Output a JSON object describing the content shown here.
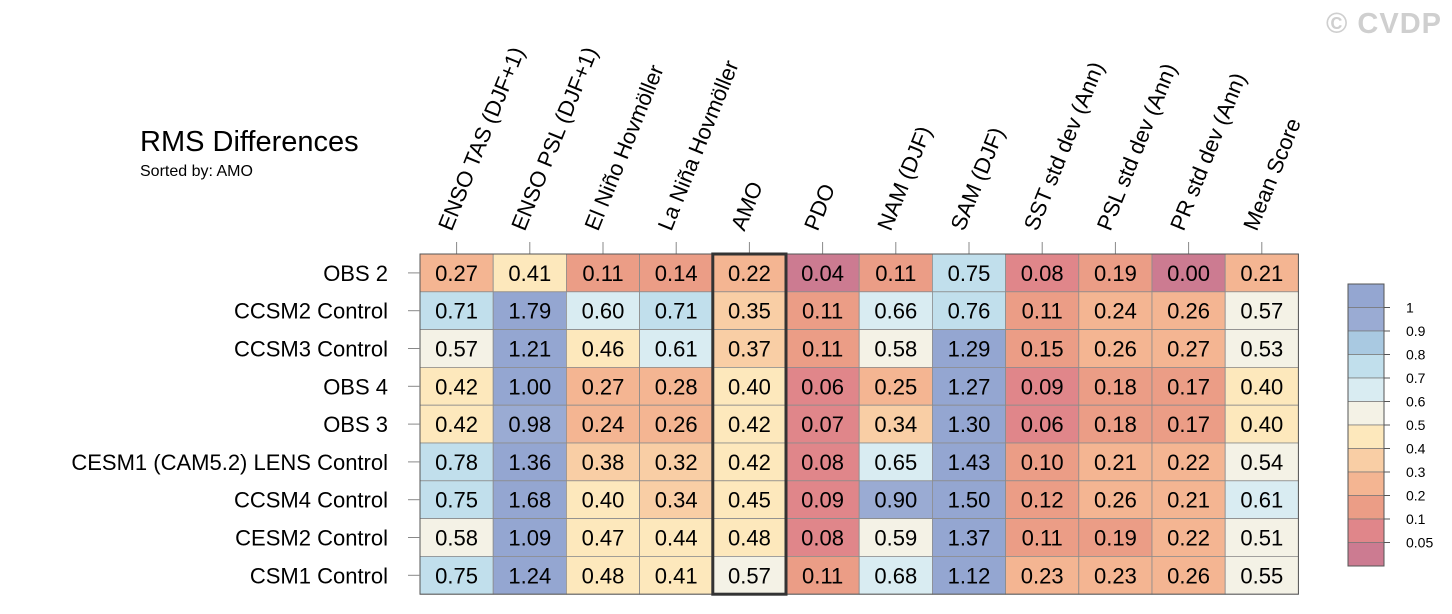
{
  "chart_data": {
    "type": "heatmap",
    "title": "RMS Differences",
    "subtitle": "Sorted by: AMO",
    "watermark": "© CVDP",
    "columns": [
      "ENSO TAS (DJF+1)",
      "ENSO PSL (DJF+1)",
      "El Niño Hovmöller",
      "La Niña Hovmöller",
      "AMO",
      "PDO",
      "NAM (DJF)",
      "SAM (DJF)",
      "SST std dev (Ann)",
      "PSL std dev (Ann)",
      "PR std dev (Ann)",
      "Mean Score"
    ],
    "rows": [
      "OBS 2",
      "CCSM2 Control",
      "CCSM3 Control",
      "OBS 4",
      "OBS 3",
      "CESM1 (CAM5.2) LENS Control",
      "CCSM4 Control",
      "CESM2 Control",
      "CSM1 Control"
    ],
    "values": [
      [
        "0.27",
        "0.41",
        "0.11",
        "0.14",
        "0.22",
        "0.04",
        "0.11",
        "0.75",
        "0.08",
        "0.19",
        "0.00",
        "0.21"
      ],
      [
        "0.71",
        "1.79",
        "0.60",
        "0.71",
        "0.35",
        "0.11",
        "0.66",
        "0.76",
        "0.11",
        "0.24",
        "0.26",
        "0.57"
      ],
      [
        "0.57",
        "1.21",
        "0.46",
        "0.61",
        "0.37",
        "0.11",
        "0.58",
        "1.29",
        "0.15",
        "0.26",
        "0.27",
        "0.53"
      ],
      [
        "0.42",
        "1.00",
        "0.27",
        "0.28",
        "0.40",
        "0.06",
        "0.25",
        "1.27",
        "0.09",
        "0.18",
        "0.17",
        "0.40"
      ],
      [
        "0.42",
        "0.98",
        "0.24",
        "0.26",
        "0.42",
        "0.07",
        "0.34",
        "1.30",
        "0.06",
        "0.18",
        "0.17",
        "0.40"
      ],
      [
        "0.78",
        "1.36",
        "0.38",
        "0.32",
        "0.42",
        "0.08",
        "0.65",
        "1.43",
        "0.10",
        "0.21",
        "0.22",
        "0.54"
      ],
      [
        "0.75",
        "1.68",
        "0.40",
        "0.34",
        "0.45",
        "0.09",
        "0.90",
        "1.50",
        "0.12",
        "0.26",
        "0.21",
        "0.61"
      ],
      [
        "0.58",
        "1.09",
        "0.47",
        "0.44",
        "0.48",
        "0.08",
        "0.59",
        "1.37",
        "0.11",
        "0.19",
        "0.22",
        "0.51"
      ],
      [
        "0.75",
        "1.24",
        "0.48",
        "0.41",
        "0.57",
        "0.11",
        "0.68",
        "1.12",
        "0.23",
        "0.23",
        "0.26",
        "0.55"
      ]
    ],
    "highlight_column": "AMO",
    "colorbar": {
      "levels": [
        0.05,
        0.1,
        0.2,
        0.3,
        0.4,
        0.5,
        0.6,
        0.7,
        0.8,
        0.9,
        1
      ],
      "labels": [
        "1",
        "0.9",
        "0.8",
        "0.7",
        "0.6",
        "0.5",
        "0.4",
        "0.3",
        "0.2",
        "0.1",
        "0.05"
      ],
      "colors": [
        "#cc7b91",
        "#e0868a",
        "#eb9d86",
        "#f4b592",
        "#f9cea5",
        "#fde8bc",
        "#f4f2e6",
        "#d9ecf2",
        "#c1dfec",
        "#a9c9e1",
        "#9aabd3",
        "#94a6d1"
      ]
    }
  }
}
